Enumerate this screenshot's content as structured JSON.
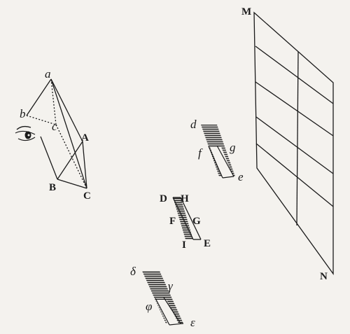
{
  "labels": {
    "a": "a",
    "b": "b",
    "c": "c",
    "A": "A",
    "B": "B",
    "C": "C",
    "d": "d",
    "f": "f",
    "g": "g",
    "e": "e",
    "D": "D",
    "H": "H",
    "F": "F",
    "G": "G",
    "I": "I",
    "E": "E",
    "delta": "δ",
    "gamma": "γ",
    "phi": "φ",
    "epsilon": "ε",
    "M": "M",
    "N": "N"
  },
  "icons": {
    "eye": "eye-icon"
  },
  "colors": {
    "ink": "#1a1a1a",
    "paper": "#f4f2ee"
  }
}
